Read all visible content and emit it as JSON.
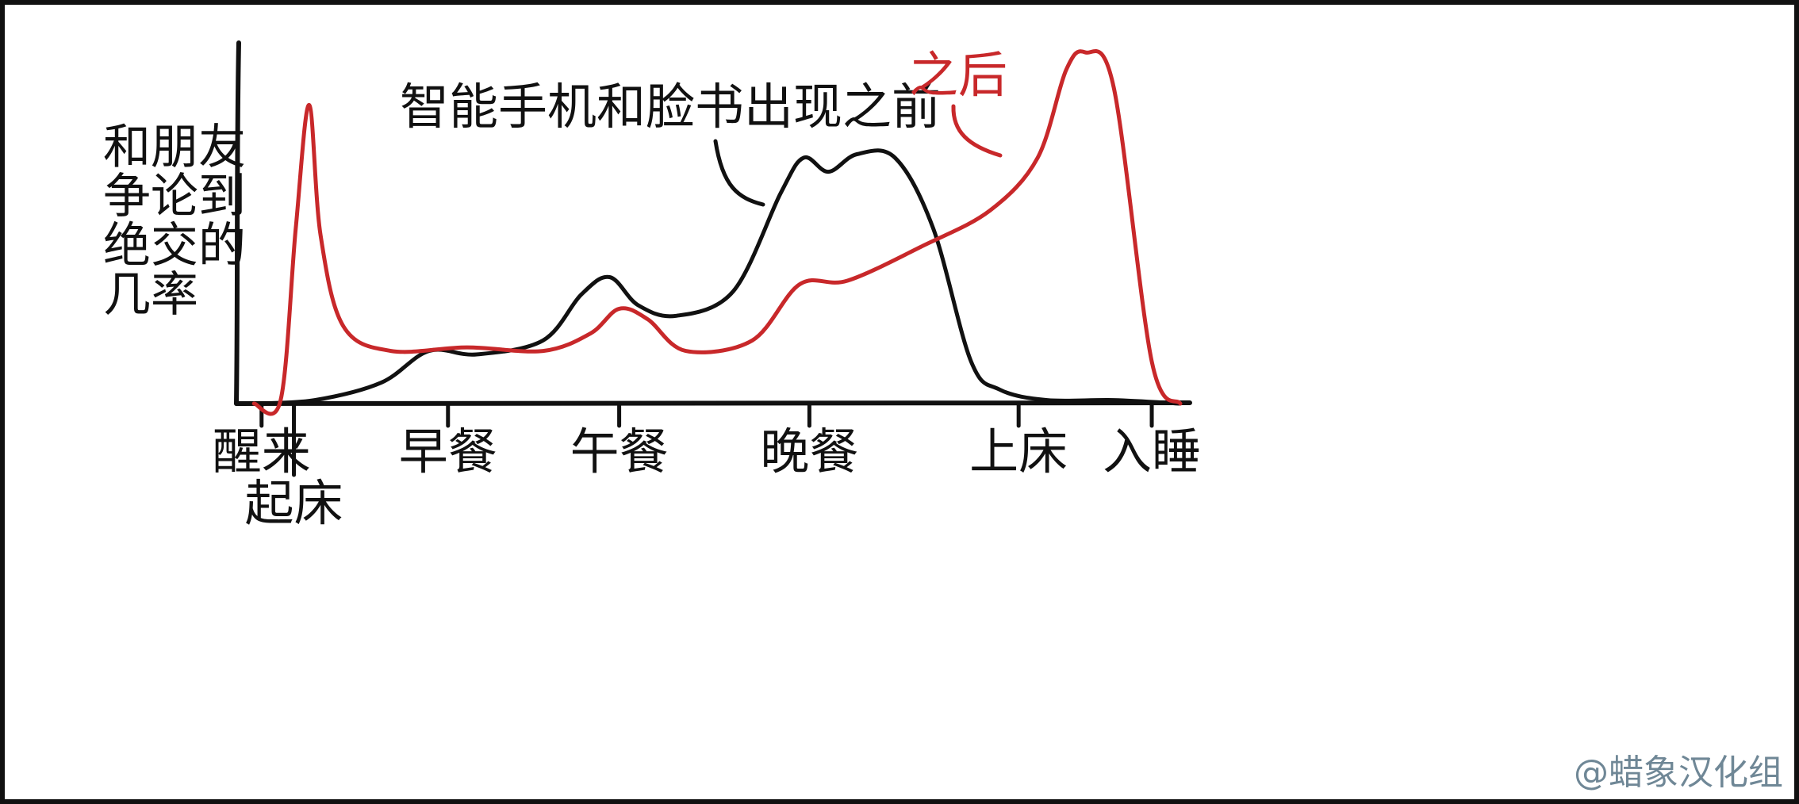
{
  "chart_data": {
    "type": "line",
    "title": "",
    "ylabel_lines": [
      "和朋友",
      "争论到",
      "绝交的",
      "几率"
    ],
    "xlabel": "",
    "ticks": [
      {
        "x": 0.12,
        "label": "醒来",
        "row": 0
      },
      {
        "x": 0.29,
        "label": "起床",
        "row": 1
      },
      {
        "x": 1.1,
        "label": "早餐",
        "row": 0
      },
      {
        "x": 2.0,
        "label": "午餐",
        "row": 0
      },
      {
        "x": 3.0,
        "label": "晚餐",
        "row": 0
      },
      {
        "x": 4.1,
        "label": "上床",
        "row": 0
      },
      {
        "x": 4.8,
        "label": "入睡",
        "row": 0
      }
    ],
    "x_range": [
      0,
      5.0
    ],
    "y_range": [
      0,
      1.0
    ],
    "series": [
      {
        "name": "智能手机和脸书出现之前",
        "color": "#111111",
        "x": [
          0.08,
          0.4,
          0.75,
          1.0,
          1.25,
          1.6,
          1.8,
          1.95,
          2.1,
          2.3,
          2.6,
          2.85,
          2.97,
          3.1,
          3.25,
          3.45,
          3.65,
          3.85,
          4.0,
          4.25,
          4.6,
          4.95
        ],
        "y": [
          0.0,
          0.01,
          0.06,
          0.15,
          0.14,
          0.18,
          0.31,
          0.36,
          0.28,
          0.25,
          0.32,
          0.6,
          0.7,
          0.66,
          0.71,
          0.7,
          0.5,
          0.12,
          0.04,
          0.01,
          0.01,
          0.0
        ]
      },
      {
        "name": "之后",
        "color": "#c8282a",
        "x": [
          0.08,
          0.22,
          0.3,
          0.37,
          0.43,
          0.55,
          0.8,
          1.2,
          1.6,
          1.85,
          2.0,
          2.15,
          2.35,
          2.7,
          2.95,
          3.2,
          3.6,
          3.95,
          4.2,
          4.35,
          4.45,
          4.6,
          4.8,
          4.95
        ],
        "y": [
          0.0,
          0.01,
          0.5,
          0.85,
          0.48,
          0.22,
          0.15,
          0.16,
          0.15,
          0.2,
          0.27,
          0.24,
          0.15,
          0.18,
          0.34,
          0.35,
          0.45,
          0.55,
          0.7,
          0.95,
          1.0,
          0.9,
          0.12,
          0.0
        ]
      }
    ],
    "grid": false,
    "legend": "none"
  },
  "watermark": "@蜡象汉化组"
}
